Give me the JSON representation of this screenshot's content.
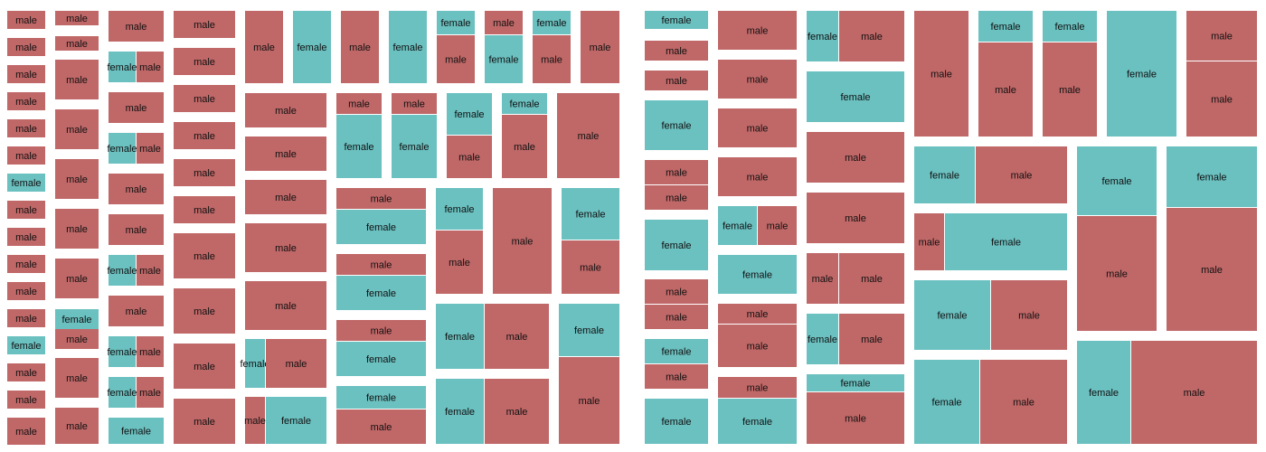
{
  "chart_data": {
    "type": "treemap",
    "title": "",
    "category_labels": [
      "female",
      "male"
    ],
    "colors": {
      "female": "#6bc0c0",
      "male": "#c06767"
    },
    "panels": [
      {
        "columns": [
          {
            "groups": [
              [
                "male"
              ],
              [
                "male"
              ],
              [
                "male"
              ],
              [
                "male"
              ],
              [
                "male"
              ],
              [
                "male"
              ],
              [
                "female"
              ],
              [
                "male"
              ],
              [
                "male"
              ],
              [
                "male"
              ],
              [
                "male"
              ],
              [
                "male"
              ],
              [
                "female"
              ],
              [
                "male"
              ],
              [
                "male"
              ],
              [
                "male"
              ]
            ]
          },
          {
            "groups": [
              [
                "male"
              ],
              [
                "male"
              ],
              [
                "male"
              ],
              [
                "male"
              ],
              [
                "male"
              ],
              [
                "male"
              ],
              [
                "male"
              ],
              [
                "female",
                "male"
              ],
              [
                "male"
              ]
            ]
          },
          {
            "groups": [
              [
                "male"
              ],
              [
                "female",
                "male"
              ],
              [
                "male"
              ],
              [
                "female",
                "male"
              ],
              [
                "male"
              ],
              [
                "male"
              ],
              [
                "female",
                "male"
              ],
              [
                "male"
              ],
              [
                "female",
                "male"
              ],
              [
                "female",
                "male"
              ],
              [
                "female"
              ]
            ]
          },
          {
            "groups": [
              [
                "male"
              ],
              [
                "male"
              ],
              [
                "male"
              ],
              [
                "male"
              ],
              [
                "male"
              ],
              [
                "male"
              ],
              [
                "male"
              ],
              [
                "male"
              ],
              [
                "male"
              ],
              [
                "male"
              ],
              [
                "male"
              ]
            ]
          },
          {
            "groups": [
              [
                "male"
              ],
              [
                "male"
              ],
              [
                "male"
              ],
              [
                "male"
              ],
              [
                "male"
              ],
              [
                "male"
              ],
              [
                "female",
                "male"
              ],
              [
                "male",
                "female"
              ]
            ]
          },
          {
            "groups": [
              [
                "female"
              ],
              [
                "male"
              ],
              [
                "female"
              ],
              [
                "male"
              ],
              [
                "female",
                "male"
              ],
              [
                "male",
                "female"
              ],
              [
                "female",
                "male"
              ],
              [
                "male",
                "female"
              ],
              [
                "male",
                "female"
              ],
              [
                "male"
              ]
            ]
          }
        ]
      },
      {
        "columns": [
          {
            "groups": [
              [
                "male"
              ],
              [
                "female"
              ],
              [
                "male"
              ],
              [
                "male"
              ],
              [
                "female"
              ],
              [
                "male"
              ],
              [
                "male"
              ],
              [
                "female"
              ],
              [
                "male"
              ],
              [
                "female"
              ],
              [
                "male"
              ],
              [
                "male"
              ]
            ]
          },
          {
            "groups": [
              [
                "male"
              ],
              [
                "male"
              ],
              [
                "female"
              ],
              [
                "male"
              ],
              [
                "female",
                "male"
              ],
              [
                "male"
              ],
              [
                "male",
                "female"
              ],
              [
                "female",
                "male"
              ]
            ]
          },
          {
            "groups": [
              [
                "female",
                "male"
              ],
              [
                "male"
              ],
              [
                "male"
              ],
              [
                "male"
              ],
              [
                "female",
                "male"
              ],
              [
                "female",
                "male"
              ],
              [
                "male",
                "female"
              ]
            ]
          },
          {
            "groups": [
              [
                "male"
              ],
              [
                "female",
                "male"
              ],
              [
                "female",
                "male"
              ],
              [
                "male"
              ],
              [
                "female",
                "male"
              ],
              [
                "male",
                "female"
              ],
              [
                "female",
                "male"
              ],
              [
                "female"
              ],
              [
                "female",
                "male"
              ],
              [
                "female",
                "male"
              ],
              [
                "female",
                "male"
              ]
            ]
          }
        ]
      }
    ]
  }
}
